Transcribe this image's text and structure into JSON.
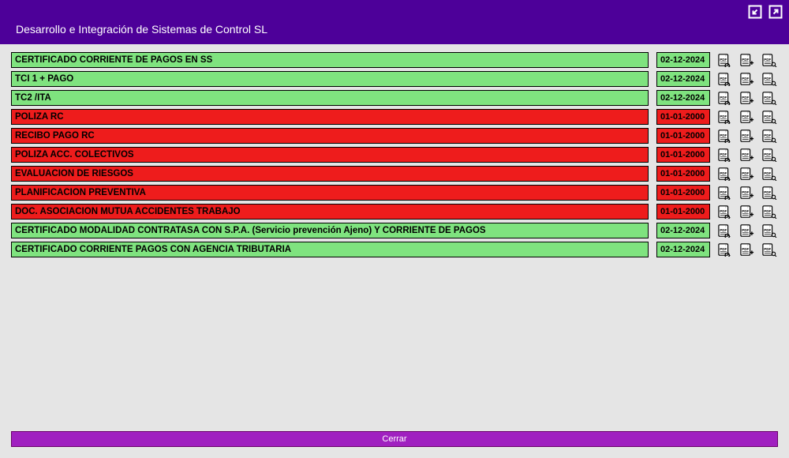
{
  "colors": {
    "header_bg": "#4d0099",
    "page_bg": "#e5e5e5",
    "ok_bg": "#7fe37f",
    "bad_bg": "#ee1c1c",
    "close_bg": "#a020c0",
    "border": "#000000",
    "text_header": "#ffffff",
    "text_row": "#000000"
  },
  "header": {
    "title": "Desarrollo e Integración de Sistemas de Control SL"
  },
  "rows": [
    {
      "name": "CERTIFICADO CORRIENTE DE PAGOS EN SS",
      "date": "02-12-2024",
      "status": "ok"
    },
    {
      "name": "TCI 1 + PAGO",
      "date": "02-12-2024",
      "status": "ok"
    },
    {
      "name": "TC2 /ITA",
      "date": "02-12-2024",
      "status": "ok"
    },
    {
      "name": "POLIZA RC",
      "date": "01-01-2000",
      "status": "bad"
    },
    {
      "name": "RECIBO PAGO RC",
      "date": "01-01-2000",
      "status": "bad"
    },
    {
      "name": "POLIZA ACC. COLECTIVOS",
      "date": "01-01-2000",
      "status": "bad"
    },
    {
      "name": "EVALUACION DE RIESGOS",
      "date": "01-01-2000",
      "status": "bad"
    },
    {
      "name": "PLANIFICACION PREVENTIVA",
      "date": "01-01-2000",
      "status": "bad"
    },
    {
      "name": "DOC. ASOCIACION MUTUA ACCIDENTES TRABAJO",
      "date": "01-01-2000",
      "status": "bad"
    },
    {
      "name": "CERTIFICADO MODALIDAD CONTRATASA CON S.P.A. (Servicio prevención Ajeno) Y CORRIENTE DE PAGOS",
      "date": "02-12-2024",
      "status": "ok"
    },
    {
      "name": "CERTIFICADO CORRIENTE PAGOS CON AGENCIA TRIBUTARIA",
      "date": "02-12-2024",
      "status": "ok"
    }
  ],
  "footer": {
    "close_label": "Cerrar"
  },
  "icons": {
    "action_names": [
      "pdf-view-icon",
      "pdf-add-icon",
      "pdf-search-icon"
    ]
  }
}
